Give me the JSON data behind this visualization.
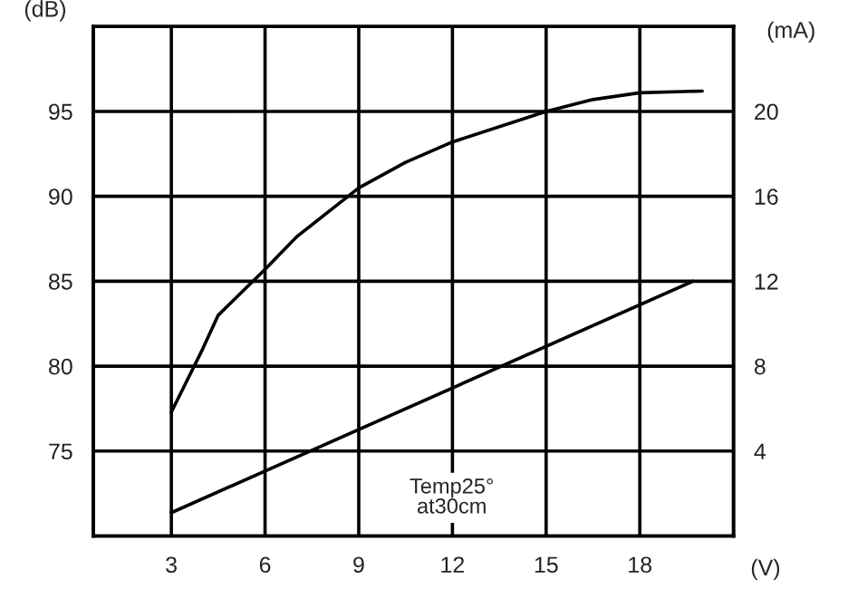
{
  "chart_data": {
    "type": "line",
    "xlabel": "(V)",
    "ylabel": "(dB)",
    "y2label": "(mA)",
    "x": [
      3,
      4,
      4.5,
      6,
      7,
      9,
      10.5,
      12,
      15,
      16.5,
      18,
      20
    ],
    "series": [
      {
        "color": "#000000",
        "values": [
          77.3,
          81,
          83,
          85.7,
          87.6,
          90.5,
          92,
          93.2,
          95,
          95.7,
          96.1,
          96.2
        ]
      },
      {
        "color": "#000000",
        "axis": "y2",
        "x": [
          3,
          19.7
        ],
        "values": [
          1.1,
          12
        ]
      }
    ],
    "xlim": [
      0.5,
      21
    ],
    "xticks": [
      3,
      6,
      9,
      12,
      15,
      18
    ],
    "ylim": [
      70,
      100
    ],
    "yticks": [
      75,
      80,
      85,
      90,
      95
    ],
    "y2lim": [
      0,
      24
    ],
    "y2ticks": [
      4,
      8,
      12,
      16,
      20
    ],
    "annotations": [
      "Temp25°\nat30cm"
    ],
    "grid": true,
    "marker": "none",
    "line_style": "solid"
  }
}
